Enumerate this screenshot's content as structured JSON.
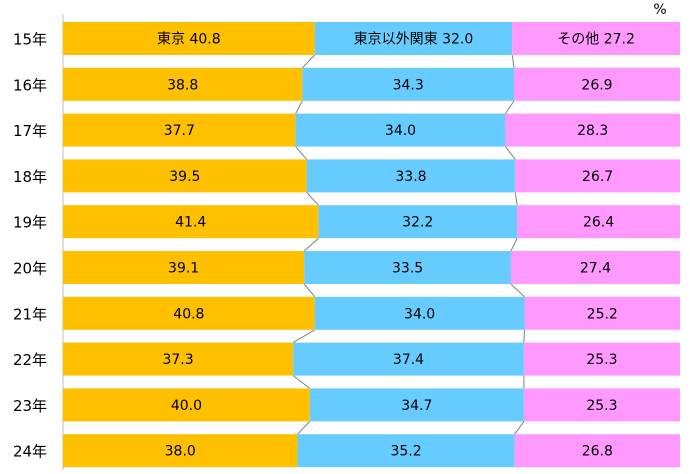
{
  "chart_data": {
    "type": "bar",
    "orientation": "horizontal",
    "stacked": true,
    "percent_stacked": true,
    "unit": "%",
    "categories": [
      "15年",
      "16年",
      "17年",
      "18年",
      "19年",
      "20年",
      "21年",
      "22年",
      "23年",
      "24年"
    ],
    "series": [
      {
        "name": "東京",
        "color": "#FFC000",
        "values": [
          40.8,
          38.8,
          37.7,
          39.5,
          41.4,
          39.1,
          40.8,
          37.3,
          40.0,
          38.0
        ]
      },
      {
        "name": "東京以外関東",
        "color": "#66CCFF",
        "values": [
          32.0,
          34.3,
          34.0,
          33.8,
          32.2,
          33.5,
          34.0,
          37.4,
          34.7,
          35.2
        ]
      },
      {
        "name": "その他",
        "color": "#FF99FF",
        "values": [
          27.2,
          26.9,
          28.3,
          26.7,
          26.4,
          27.4,
          25.2,
          25.3,
          25.3,
          26.8
        ]
      }
    ],
    "series_lines": true,
    "xlim": [
      0,
      100
    ],
    "grid": false,
    "legend": "inline-first-bar"
  }
}
